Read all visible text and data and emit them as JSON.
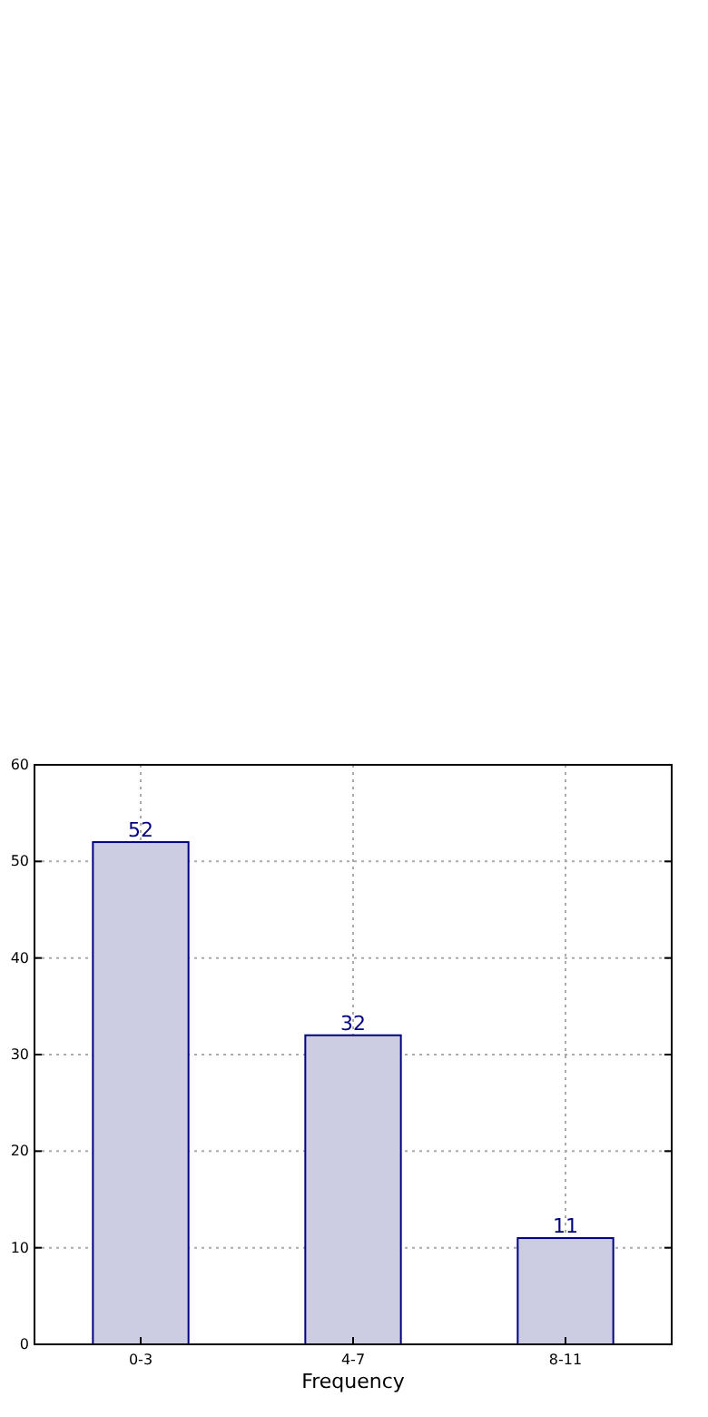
{
  "chart_data": {
    "type": "bar",
    "xlabel": "Frequency",
    "categories": [
      "0-3",
      "4-7",
      "8-11"
    ],
    "series": [
      {
        "color": "#ccccE3",
        "values": [
          52,
          32,
          11
        ]
      }
    ],
    "ylim": [
      0,
      60
    ],
    "yticks": [
      0,
      10,
      20,
      30,
      40,
      50,
      60
    ],
    "grid": true,
    "data_labels": true
  }
}
